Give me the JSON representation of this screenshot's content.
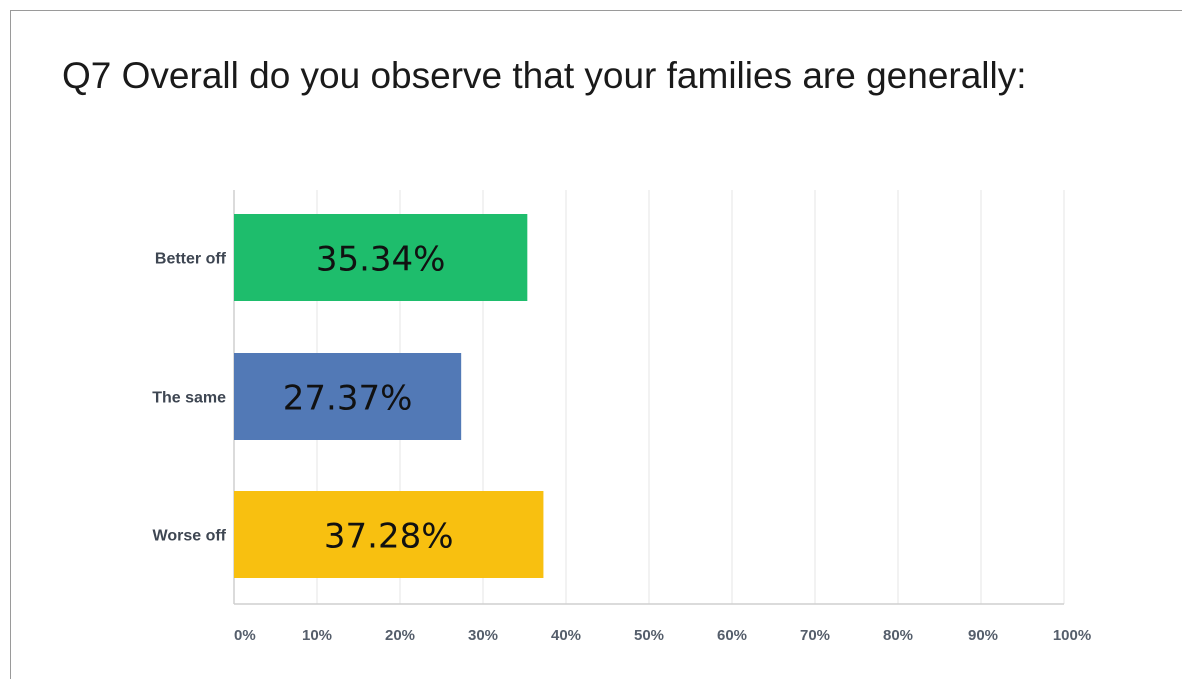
{
  "title": "Q7 Overall do you observe that your families are generally:",
  "colors": {
    "better_off": "#1ebd6c",
    "the_same": "#5279b6",
    "worse_off": "#f8c010",
    "gridline": "#e6e6e6",
    "axis_text": "#555e6b",
    "category_text": "#3e4652",
    "bar_label_text": "#111111"
  },
  "chart_data": {
    "type": "bar",
    "orientation": "horizontal",
    "categories": [
      "Better off",
      "The same",
      "Worse off"
    ],
    "values": [
      35.34,
      27.37,
      37.28
    ],
    "data_labels": [
      "35.34%",
      "27.37%",
      "37.28%"
    ],
    "xlim": [
      0,
      100
    ],
    "xticks": [
      0,
      10,
      20,
      30,
      40,
      50,
      60,
      70,
      80,
      90,
      100
    ],
    "xtick_labels": [
      "0%",
      "10%",
      "20%",
      "30%",
      "40%",
      "50%",
      "60%",
      "70%",
      "80%",
      "90%",
      "100%"
    ],
    "grid": true,
    "legend": "none"
  }
}
